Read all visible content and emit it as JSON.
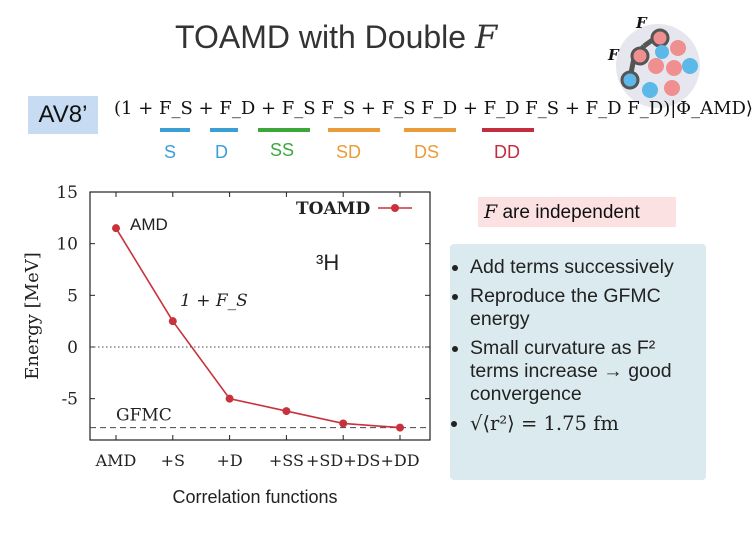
{
  "header": {
    "title_text": "TOAMD with Double ",
    "title_symbol": "F"
  },
  "logo": {
    "label_top": "F",
    "label_left": "F"
  },
  "formula": {
    "tag": "AV8’",
    "expression": "(1 + F_S + F_D + F_S F_S + F_S F_D + F_D F_S + F_D F_D)|Φ_AMD⟩",
    "terms": [
      {
        "label": "S",
        "color": "#3b9fd6"
      },
      {
        "label": "D",
        "color": "#3b9fd6"
      },
      {
        "label": "SS",
        "color": "#3ca83c"
      },
      {
        "label": "SD",
        "color": "#e89c3a"
      },
      {
        "label": "DS",
        "color": "#e89c3a"
      },
      {
        "label": "DD",
        "color": "#c22e3e"
      }
    ]
  },
  "note": {
    "symbol": "F",
    "text": " are independent"
  },
  "bullets": {
    "items": [
      "Add terms successively",
      "Reproduce the GFMC energy",
      "Small curvature as F² terms increase → good convergence",
      "√⟨r²⟩ = 1.75 fm"
    ]
  },
  "chart_data": {
    "type": "line",
    "categories": [
      "AMD",
      "+S",
      "+D",
      "+SS",
      "+SD+DS",
      "+DD"
    ],
    "series": [
      {
        "name": "TOAMD",
        "values": [
          11.5,
          2.5,
          -5.0,
          -6.2,
          -7.4,
          -7.8
        ],
        "color": "#c8323c"
      }
    ],
    "reference_lines": [
      {
        "name": "GFMC",
        "value": -7.8,
        "style": "dashed"
      },
      {
        "name": "",
        "value": 0,
        "style": "dotted"
      }
    ],
    "ylabel": "Energy [MeV]",
    "xlabel": "Correlation functions",
    "ylim": [
      -9,
      15
    ],
    "yticks": [
      15,
      10,
      5,
      0,
      -5
    ],
    "annotations": [
      {
        "text": "AMD",
        "at": "AMD"
      },
      {
        "text": "1 + F_S",
        "at": "+S"
      },
      {
        "text": "³H",
        "at": "top-center"
      }
    ],
    "legend": {
      "position": "top-right",
      "entries": [
        "TOAMD"
      ]
    }
  }
}
